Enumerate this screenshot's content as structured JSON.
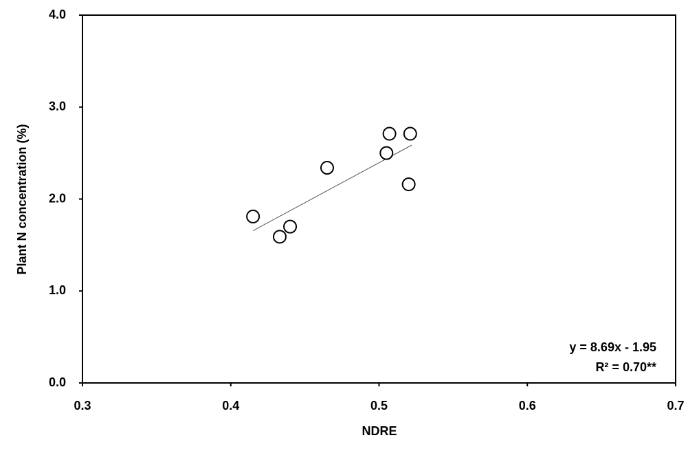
{
  "chart_data": {
    "type": "scatter",
    "x_label": "NDRE",
    "y_label": "Plant N concentration (%)",
    "series": [
      {
        "name": "Plant N",
        "color": "#000000",
        "x": [
          0.415,
          0.433,
          0.44,
          0.465,
          0.505,
          0.507,
          0.521,
          0.52
        ],
        "values": [
          1.81,
          1.59,
          1.7,
          2.34,
          2.5,
          2.71,
          2.71,
          2.16
        ]
      }
    ],
    "trendline": {
      "x": [
        0.415,
        0.522
      ],
      "values": [
        1.656,
        2.586
      ]
    },
    "annotations": [
      "y = 8.69x - 1.95",
      "R² = 0.70**"
    ],
    "xlim": [
      0.3,
      0.7
    ],
    "xticks": [
      0.3,
      0.4,
      0.5,
      0.6,
      0.7
    ],
    "ylim": [
      0,
      4
    ],
    "yticks": [
      {
        "value": 0,
        "label": "0.0"
      },
      {
        "value": 1,
        "label": "1.0"
      },
      {
        "value": 2,
        "label": "2.0"
      },
      {
        "value": 3,
        "label": "3.0"
      },
      {
        "value": 4,
        "label": "4.0"
      }
    ],
    "grid": false
  }
}
